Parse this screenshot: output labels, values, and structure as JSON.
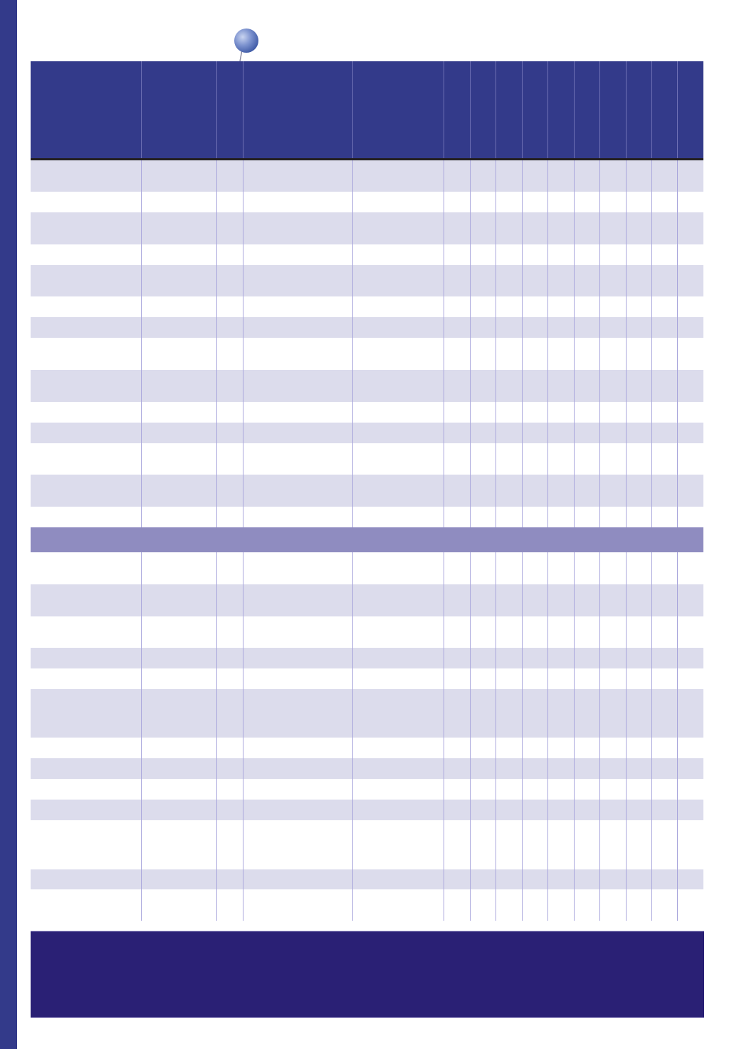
{
  "colors": {
    "left_bar": "#333a8a",
    "header": "#333a8a",
    "row_shaded": "#dcdcec",
    "row_plain": "#ffffff",
    "section_band": "#8f8cc0",
    "grid_line": "#a9a6dc",
    "footer": "#2a2075"
  },
  "icons": {
    "pin": "pushpin-icon"
  }
}
